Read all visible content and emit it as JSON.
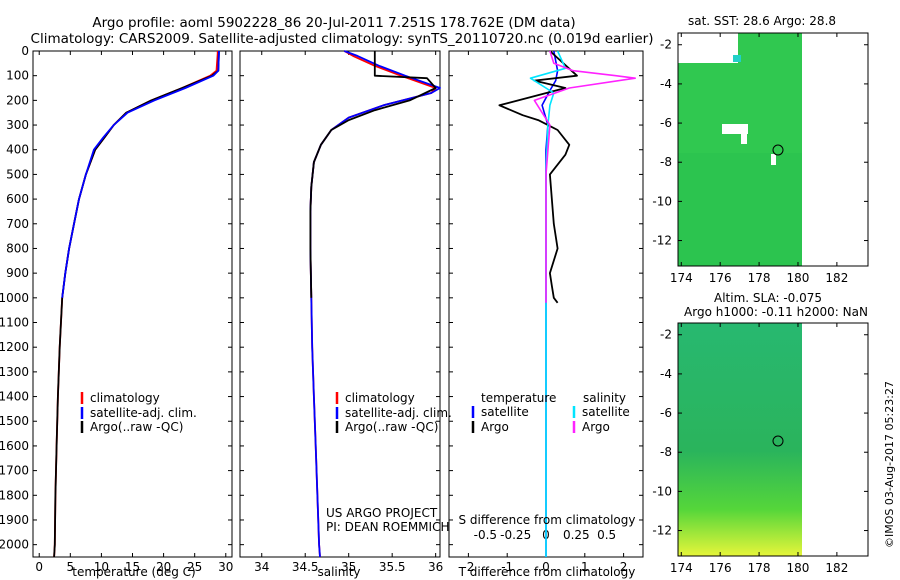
{
  "header": {
    "line1": "Argo profile: aoml 5902228_86 20-Jul-2011 7.251S 178.762E (DM data)",
    "line2": "Climatology: CARS2009. Satellite-adjusted climatology: synTS_20110720.nc (0.019d earlier)"
  },
  "colors": {
    "climatology": "#ff0000",
    "satellite": "#0000ff",
    "argo": "#000000",
    "sal_satellite": "#00e5ff",
    "sal_argo": "#ff22ff",
    "ocean_green": "#22c855"
  },
  "depth_ticks": [
    "0",
    "100",
    "200",
    "300",
    "400",
    "500",
    "600",
    "700",
    "800",
    "900",
    "1000",
    "1100",
    "1200",
    "1300",
    "1400",
    "1500",
    "1600",
    "1700",
    "1800",
    "1900",
    "2000"
  ],
  "panel_temp": {
    "xlabel": "temperature (deg C)",
    "xticks": [
      "0",
      "5",
      "10",
      "15",
      "20",
      "25",
      "30"
    ],
    "legend": [
      "climatology",
      "satellite-adj. clim.",
      "Argo(..raw -QC)"
    ]
  },
  "panel_sal": {
    "xlabel": "salinity",
    "xticks": [
      "34",
      "34.5",
      "35",
      "35.5",
      "36"
    ],
    "legend": [
      "climatology",
      "satellite-adj. clim.",
      "Argo(..raw -QC)"
    ],
    "credit1": "US ARGO PROJECT",
    "credit2": "PI: DEAN ROEMMICH"
  },
  "panel_diff": {
    "xlabel_bottom": "T difference from climatology",
    "xlabel_top": "S difference from climatology",
    "xticks_bottom": [
      "-2",
      "-1",
      "0",
      "1",
      "2"
    ],
    "xticks_top": [
      "-0.5",
      "-0.25",
      "0",
      "0.25",
      "0.5"
    ],
    "legend_temp_title": "temperature",
    "legend_sal_title": "salinity",
    "legend_temp": [
      "satellite",
      "Argo"
    ],
    "legend_sal": [
      "satellite",
      "Argo"
    ]
  },
  "map_sst": {
    "title": "sat. SST: 28.6  Argo: 28.8",
    "yticks": [
      "-2",
      "-4",
      "-6",
      "-8",
      "-10",
      "-12"
    ],
    "xticks": [
      "174",
      "176",
      "178",
      "180",
      "182"
    ]
  },
  "map_sla": {
    "title1": "Altim. SLA: -0.075",
    "title2": "Argo h1000: -0.11  h2000: NaN",
    "yticks": [
      "-2",
      "-4",
      "-6",
      "-8",
      "-10",
      "-12"
    ],
    "xticks": [
      "174",
      "176",
      "178",
      "180",
      "182"
    ]
  },
  "footer_stamp": "©IMOS 03-Aug-2017 05:23:27",
  "chart_data": [
    {
      "type": "line",
      "name": "temperature-profile",
      "xlabel": "temperature (deg C)",
      "ylabel": "",
      "xlim": [
        -1,
        31
      ],
      "ylim": [
        2050,
        0
      ],
      "series": [
        {
          "name": "climatology",
          "x": [
            28.7,
            28.7,
            28.5,
            27.5,
            23,
            18,
            14,
            12,
            10.5,
            9,
            7.5,
            6.4,
            5.6,
            4.8,
            4.2,
            3.7,
            3.3,
            3.0,
            2.8,
            2.6,
            2.5,
            2.4
          ],
          "y": [
            0,
            10,
            80,
            100,
            150,
            200,
            250,
            300,
            350,
            400,
            500,
            600,
            700,
            800,
            900,
            1000,
            1200,
            1400,
            1600,
            1800,
            2000,
            2050
          ]
        },
        {
          "name": "satellite-adj. clim.",
          "x": [
            28.9,
            28.9,
            28.8,
            27.8,
            23,
            18,
            14,
            12,
            10.5,
            9,
            7.5,
            6.4,
            5.6,
            4.8,
            4.2,
            3.7,
            3.3,
            3.0,
            2.8,
            2.6,
            2.5,
            2.4
          ],
          "y": [
            0,
            10,
            80,
            100,
            150,
            200,
            250,
            300,
            350,
            400,
            500,
            600,
            700,
            800,
            900,
            1000,
            1200,
            1400,
            1600,
            1800,
            2000,
            2050
          ]
        },
        {
          "name": "Argo(..raw -QC)",
          "x": [
            28.9,
            28.9,
            28.8,
            28,
            23.5,
            18.5,
            14.2,
            12,
            10.3,
            8.8,
            7.5,
            6.4,
            5.6,
            4.8,
            4.2,
            3.7
          ],
          "y": [
            0,
            10,
            80,
            100,
            150,
            200,
            250,
            300,
            350,
            400,
            500,
            600,
            700,
            800,
            900,
            1000
          ]
        }
      ]
    },
    {
      "type": "line",
      "name": "salinity-profile",
      "xlabel": "salinity",
      "ylabel": "",
      "xlim": [
        33.75,
        36.05
      ],
      "ylim": [
        2050,
        0
      ],
      "series": [
        {
          "name": "climatology",
          "x": [
            34.95,
            35.05,
            35.3,
            35.6,
            36.0,
            35.95,
            35.4,
            35.0,
            34.8,
            34.68,
            34.6,
            34.57,
            34.56,
            34.56,
            34.57,
            34.58,
            34.6,
            34.62,
            34.64,
            34.66,
            34.67
          ],
          "y": [
            0,
            20,
            60,
            100,
            150,
            170,
            220,
            270,
            320,
            380,
            450,
            550,
            650,
            800,
            1000,
            1200,
            1400,
            1600,
            1800,
            2000,
            2050
          ]
        },
        {
          "name": "satellite-adj. clim.",
          "x": [
            34.95,
            35.1,
            35.35,
            35.65,
            36.05,
            35.95,
            35.4,
            35.0,
            34.8,
            34.68,
            34.6,
            34.57,
            34.56,
            34.56,
            34.57,
            34.58,
            34.6,
            34.62,
            34.64,
            34.66,
            34.67
          ],
          "y": [
            0,
            20,
            60,
            100,
            150,
            170,
            220,
            270,
            320,
            380,
            450,
            550,
            650,
            800,
            1000,
            1200,
            1400,
            1600,
            1800,
            2000,
            2050
          ]
        },
        {
          "name": "Argo(..raw -QC)",
          "x": [
            35.3,
            35.3,
            35.3,
            35.9,
            36.0,
            35.7,
            35.3,
            35.0,
            34.8,
            34.68,
            34.6,
            34.57,
            34.56,
            34.56,
            34.57
          ],
          "y": [
            0,
            50,
            100,
            110,
            150,
            200,
            240,
            280,
            320,
            380,
            450,
            550,
            650,
            800,
            1000
          ]
        }
      ]
    },
    {
      "type": "line",
      "name": "difference-profile",
      "xlabel": "T difference from climatology",
      "ylabel": "",
      "xlim": [
        -2.5,
        2.5
      ],
      "ylim": [
        2050,
        0
      ],
      "series": [
        {
          "name": "temperature satellite",
          "x": [
            0.2,
            0.3,
            0.25,
            0.1,
            -0.1,
            0.05,
            0,
            0,
            0,
            0
          ],
          "y": [
            0,
            80,
            120,
            160,
            220,
            300,
            400,
            600,
            1000,
            2050
          ]
        },
        {
          "name": "temperature Argo",
          "x": [
            0.1,
            0.8,
            -0.3,
            0.5,
            -1.2,
            -0.6,
            -0.2,
            0.3,
            0.6,
            0.5,
            0.1,
            0.2,
            0.3,
            0.1,
            0.15,
            0.2,
            0.3
          ],
          "y": [
            0,
            100,
            120,
            150,
            220,
            260,
            280,
            320,
            380,
            420,
            500,
            700,
            800,
            900,
            950,
            1000,
            1020
          ]
        },
        {
          "name": "salinity satellite",
          "x": [
            0.3,
            0.5,
            -0.4,
            0.2,
            0.1,
            0.05,
            0,
            0,
            0
          ],
          "y": [
            0,
            70,
            110,
            170,
            220,
            300,
            500,
            1000,
            2050
          ]
        },
        {
          "name": "salinity Argo",
          "x": [
            0.1,
            0.2,
            0.7,
            1.8,
            2.3,
            0.6,
            -0.3,
            0.1,
            0,
            0
          ],
          "y": [
            0,
            50,
            80,
            100,
            110,
            150,
            200,
            300,
            500,
            1020
          ]
        }
      ]
    }
  ]
}
